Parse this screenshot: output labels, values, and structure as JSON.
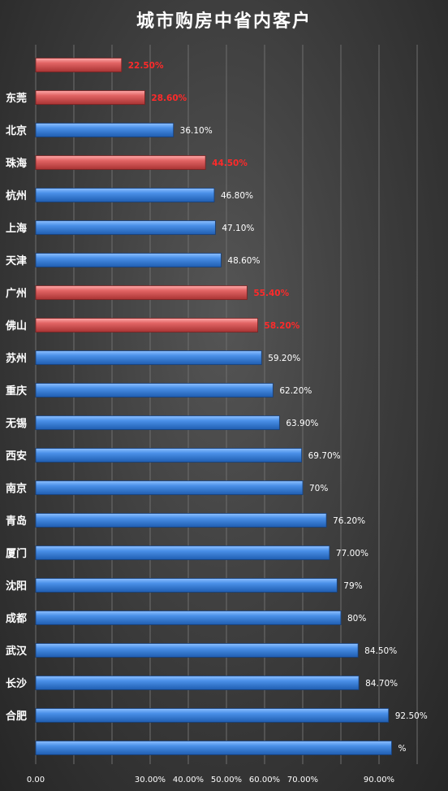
{
  "chart_data": {
    "type": "bar",
    "orientation": "horizontal",
    "title": "城市购房中省内客户",
    "categories": [
      "",
      "东莞",
      "北京",
      "珠海",
      "杭州",
      "上海",
      "天津",
      "广州",
      "佛山",
      "苏州",
      "重庆",
      "无锡",
      "西安",
      "南京",
      "青岛",
      "厦门",
      "沈阳",
      "成都",
      "武汉",
      "长沙",
      "合肥",
      ""
    ],
    "values": [
      22.5,
      28.6,
      36.1,
      44.5,
      46.8,
      47.1,
      48.6,
      55.4,
      58.2,
      59.2,
      62.2,
      63.9,
      69.7,
      70,
      76.2,
      77.0,
      79,
      80,
      84.5,
      84.7,
      92.5,
      93.3
    ],
    "value_labels": [
      "22.50%",
      "28.60%",
      "36.10%",
      "44.50%",
      "46.80%",
      "47.10%",
      "48.60%",
      "55.40%",
      "58.20%",
      "59.20%",
      "62.20%",
      "63.90%",
      "69.70%",
      "70%",
      "76.20%",
      "77.00%",
      "79%",
      "80%",
      "84.50%",
      "84.70%",
      "92.50%",
      "%"
    ],
    "highlight": [
      true,
      true,
      false,
      true,
      false,
      false,
      false,
      true,
      true,
      false,
      false,
      false,
      false,
      false,
      false,
      false,
      false,
      false,
      false,
      false,
      false,
      false
    ],
    "xlim": [
      0,
      100
    ],
    "xticks": [
      0,
      10,
      20,
      30,
      40,
      50,
      60,
      70,
      80,
      90,
      100
    ],
    "xtick_labels": [
      "0.00",
      "",
      "",
      "30.00%",
      "40.00%",
      "50.00%",
      "60.00%",
      "70.00%",
      "",
      "90.00%",
      ""
    ],
    "grid": "vertical",
    "colors": {
      "blue_bar": "#3b7fd6",
      "red_bar": "#d9595c",
      "red_label": "#ff2a2a",
      "white_label": "#ffffff"
    }
  }
}
